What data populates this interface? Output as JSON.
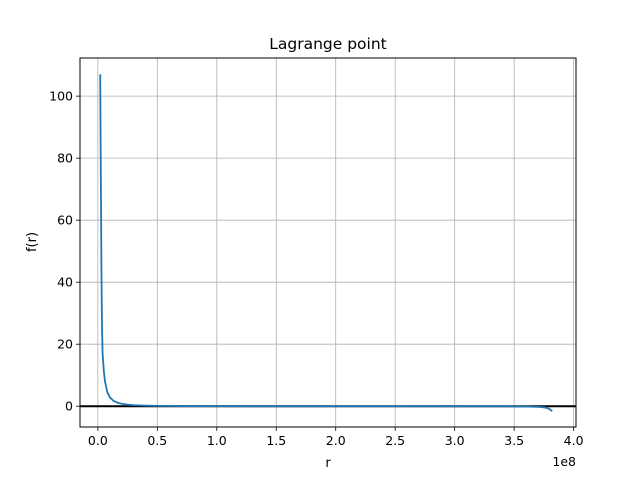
{
  "chart_data": {
    "type": "line",
    "title": "Lagrange point",
    "xlabel": "r",
    "ylabel": "f(r)",
    "x_offset_label": "1e8",
    "xlim": [
      -15000000,
      402000000
    ],
    "ylim": [
      -6.7,
      112.3
    ],
    "grid": true,
    "x_ticks": [
      0,
      50000000,
      100000000,
      150000000,
      200000000,
      250000000,
      300000000,
      350000000,
      400000000
    ],
    "x_tick_labels": [
      "0.0",
      "0.5",
      "1.0",
      "1.5",
      "2.0",
      "2.5",
      "3.0",
      "3.5",
      "4.0"
    ],
    "y_ticks": [
      0,
      20,
      40,
      60,
      80,
      100
    ],
    "y_tick_labels": [
      "0",
      "20",
      "40",
      "60",
      "80",
      "100"
    ],
    "hline_y": 0,
    "series": [
      {
        "color": "#1f77b4",
        "x": [
          2000000,
          2500000,
          3000000,
          3500000,
          4000000,
          5000000,
          6000000,
          8000000,
          10000000,
          13000000,
          16000000,
          20000000,
          25000000,
          30000000,
          40000000,
          50000000,
          70000000,
          100000000,
          150000000,
          200000000,
          250000000,
          300000000,
          340000000,
          360000000,
          370000000,
          375000000,
          378000000,
          380000000,
          382000000
        ],
        "y": [
          107,
          75,
          45,
          26,
          17,
          11.5,
          8,
          4.5,
          2.9,
          1.8,
          1.2,
          0.8,
          0.5,
          0.35,
          0.2,
          0.12,
          0.06,
          0.03,
          0.01,
          0.0,
          -0.01,
          -0.02,
          -0.05,
          -0.1,
          -0.2,
          -0.35,
          -0.6,
          -1.0,
          -1.6
        ]
      }
    ]
  }
}
